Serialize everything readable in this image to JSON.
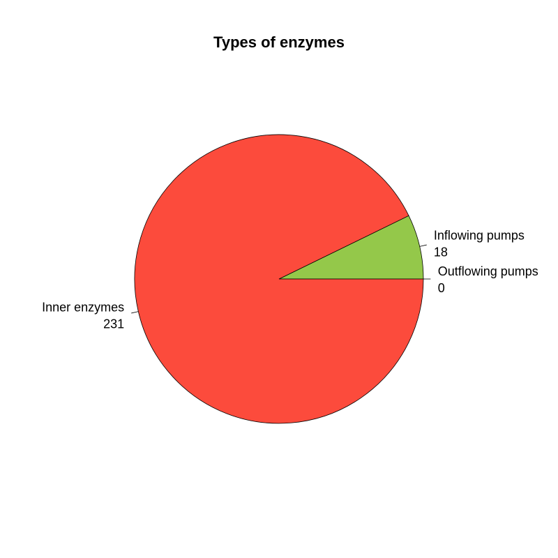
{
  "chart_data": {
    "type": "pie",
    "title": "Types of enzymes",
    "start_angle_deg": 0,
    "direction": "counterclockwise",
    "slices": [
      {
        "label": "Outflowing pumps",
        "value": 0,
        "color": "#8fbc8f"
      },
      {
        "label": "Inflowing pumps",
        "value": 18,
        "color": "#94c84a"
      },
      {
        "label": "Inner enzymes",
        "value": 231,
        "color": "#fc4b3c"
      }
    ]
  }
}
